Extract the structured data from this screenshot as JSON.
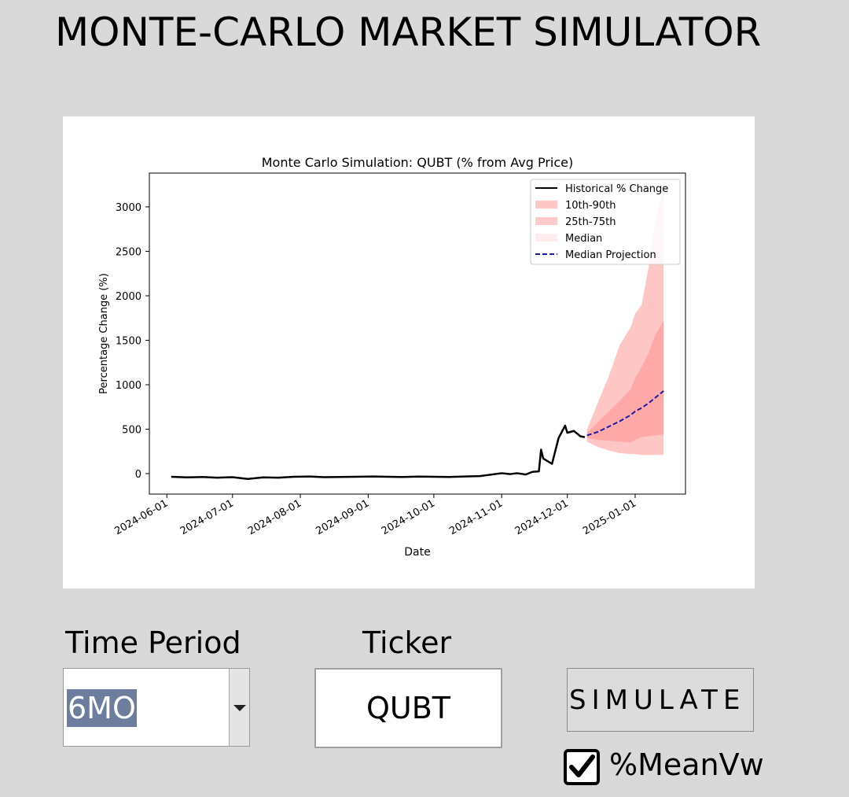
{
  "app": {
    "title": "MONTE-CARLO MARKET SIMULATOR"
  },
  "controls": {
    "time_period_label": "Time Period",
    "time_period_value": "6MO",
    "ticker_label": "Ticker",
    "ticker_value": "QUBT",
    "simulate_label": "SIMULATE",
    "meanvw_label": "%MeanVw",
    "meanvw_checked": true
  },
  "chart_data": {
    "type": "line",
    "title": "Monte Carlo Simulation: QUBT (% from Avg Price)",
    "xlabel": "Date",
    "ylabel": "Percentage Change (%)",
    "x_type": "date",
    "xlim": [
      "2024-05-24",
      "2025-01-24"
    ],
    "ylim": [
      -230,
      3380
    ],
    "xticks": [
      "2024-06-01",
      "2024-07-01",
      "2024-08-01",
      "2024-09-01",
      "2024-10-01",
      "2024-11-01",
      "2024-12-01",
      "2025-01-01"
    ],
    "yticks": [
      0,
      500,
      1000,
      1500,
      2000,
      2500,
      3000
    ],
    "grid": false,
    "legend_position": "top-right",
    "legend": [
      "Historical % Change",
      "10th-90th",
      "25th-75th",
      "Median",
      "Median Projection"
    ],
    "colors": {
      "historical": "#000000",
      "band_10_90": "#ffc6c6",
      "band_25_75": "#ffa8a8",
      "median_fill": "#ffecec",
      "median_projection": "#1a1aaa"
    },
    "series": [
      {
        "name": "Historical % Change",
        "style": "solid",
        "points": [
          [
            "2024-06-03",
            -35
          ],
          [
            "2024-06-10",
            -42
          ],
          [
            "2024-06-17",
            -38
          ],
          [
            "2024-06-24",
            -45
          ],
          [
            "2024-07-01",
            -40
          ],
          [
            "2024-07-08",
            -60
          ],
          [
            "2024-07-15",
            -42
          ],
          [
            "2024-07-22",
            -45
          ],
          [
            "2024-07-29",
            -35
          ],
          [
            "2024-08-05",
            -32
          ],
          [
            "2024-08-12",
            -40
          ],
          [
            "2024-08-19",
            -38
          ],
          [
            "2024-08-26",
            -35
          ],
          [
            "2024-09-03",
            -32
          ],
          [
            "2024-09-10",
            -35
          ],
          [
            "2024-09-17",
            -38
          ],
          [
            "2024-09-24",
            -33
          ],
          [
            "2024-10-01",
            -35
          ],
          [
            "2024-10-08",
            -38
          ],
          [
            "2024-10-15",
            -32
          ],
          [
            "2024-10-22",
            -28
          ],
          [
            "2024-10-29",
            -5
          ],
          [
            "2024-11-01",
            5
          ],
          [
            "2024-11-05",
            -5
          ],
          [
            "2024-11-08",
            5
          ],
          [
            "2024-11-12",
            -10
          ],
          [
            "2024-11-15",
            20
          ],
          [
            "2024-11-18",
            25
          ],
          [
            "2024-11-19",
            270
          ],
          [
            "2024-11-20",
            170
          ],
          [
            "2024-11-22",
            140
          ],
          [
            "2024-11-24",
            110
          ],
          [
            "2024-11-27",
            400
          ],
          [
            "2024-11-30",
            540
          ],
          [
            "2024-12-01",
            460
          ],
          [
            "2024-12-04",
            480
          ],
          [
            "2024-12-07",
            420
          ],
          [
            "2024-12-09",
            410
          ]
        ]
      },
      {
        "name": "Median Projection",
        "style": "dashed",
        "points": [
          [
            "2024-12-10",
            430
          ],
          [
            "2024-12-15",
            470
          ],
          [
            "2024-12-20",
            530
          ],
          [
            "2024-12-25",
            590
          ],
          [
            "2024-12-30",
            660
          ],
          [
            "2025-01-01",
            700
          ],
          [
            "2025-01-04",
            740
          ],
          [
            "2025-01-07",
            790
          ],
          [
            "2025-01-10",
            850
          ],
          [
            "2025-01-14",
            930
          ]
        ]
      }
    ],
    "bands": [
      {
        "name": "10th-90th",
        "dates": [
          "2024-12-10",
          "2024-12-15",
          "2024-12-20",
          "2024-12-25",
          "2024-12-30",
          "2025-01-01",
          "2025-01-04",
          "2025-01-07",
          "2025-01-10",
          "2025-01-14"
        ],
        "low": [
          360,
          300,
          260,
          230,
          220,
          220,
          210,
          210,
          210,
          210
        ],
        "high": [
          500,
          800,
          1100,
          1450,
          1650,
          1800,
          1900,
          2300,
          2800,
          3250
        ]
      },
      {
        "name": "25th-75th",
        "dates": [
          "2024-12-10",
          "2024-12-15",
          "2024-12-20",
          "2024-12-25",
          "2024-12-30",
          "2025-01-01",
          "2025-01-04",
          "2025-01-07",
          "2025-01-10",
          "2025-01-14"
        ],
        "low": [
          400,
          380,
          370,
          360,
          350,
          380,
          410,
          420,
          430,
          440
        ],
        "high": [
          460,
          580,
          700,
          820,
          950,
          1080,
          1200,
          1350,
          1550,
          1720
        ]
      }
    ]
  }
}
